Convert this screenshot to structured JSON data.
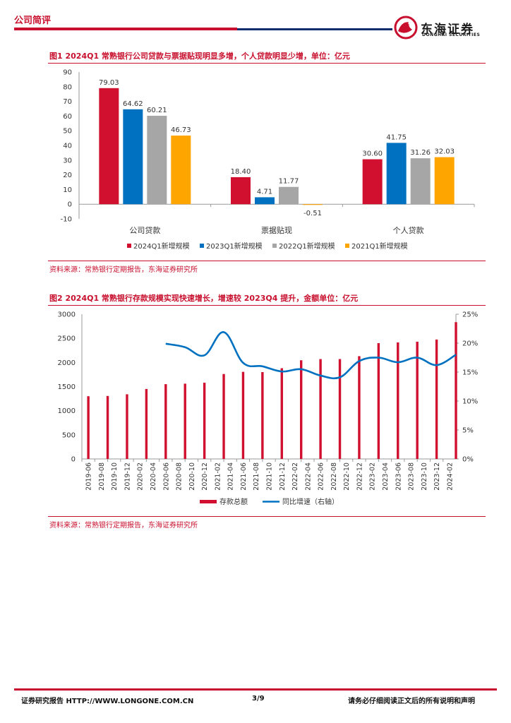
{
  "header": {
    "section": "公司简评",
    "logo_cn": "东海证券",
    "logo_en": "DONGHAI SECURITIES"
  },
  "figure1": {
    "title": "图1  2024Q1 常熟银行公司贷款与票据贴现明显多增，个人贷款明显少增，单位：亿元",
    "source": "资料来源：常熟银行定期报告，东海证券研究所"
  },
  "figure2": {
    "title": "图2  2024Q1 常熟银行存款规模实现快速增长，增速较 2023Q4 提升，金额单位：亿元",
    "source": "资料来源：常熟银行定期报告，东海证券研究所"
  },
  "footer": {
    "left": "证券研究报告    HTTP://WWW.LONGONE.COM.CN",
    "page": "3/9",
    "right": "请务必仔细阅读正文后的所有说明和声明"
  },
  "colors": {
    "accent": "#c8102e",
    "navy": "#0b2d6b",
    "blue": "#0070c0",
    "gray": "#a6a6a6",
    "orange": "#ffa500"
  },
  "chart_data": [
    {
      "type": "bar",
      "categories": [
        "公司贷款",
        "票据贴现",
        "个人贷款"
      ],
      "series": [
        {
          "name": "2024Q1新增规模",
          "values": [
            79.03,
            18.4,
            30.6
          ],
          "color": "#d0102e"
        },
        {
          "name": "2023Q1新增规模",
          "values": [
            64.62,
            4.71,
            41.75
          ],
          "color": "#0070c0"
        },
        {
          "name": "2022Q1新增规模",
          "values": [
            60.21,
            11.77,
            31.26
          ],
          "color": "#a6a6a6"
        },
        {
          "name": "2021Q1新增规模",
          "values": [
            46.73,
            -0.51,
            32.03
          ],
          "color": "#ffa500"
        }
      ],
      "data_labels": [
        [
          "79.03",
          "18.40",
          "30.60"
        ],
        [
          "64.62",
          "4.71",
          "41.75"
        ],
        [
          "60.21",
          "11.77",
          "31.26"
        ],
        [
          "46.73",
          "-0.51",
          "32.03"
        ]
      ],
      "ylim": [
        -10,
        90
      ],
      "yticks": [
        "-10",
        "0",
        "10",
        "20",
        "30",
        "40",
        "50",
        "60",
        "70",
        "80",
        "90"
      ],
      "legend": "bottom"
    },
    {
      "type": "bar+line",
      "x": [
        "2019-06",
        "2019-08",
        "2019-10",
        "2019-12",
        "2020-02",
        "2020-04",
        "2020-06",
        "2020-08",
        "2020-10",
        "2020-12",
        "2021-02",
        "2021-04",
        "2021-06",
        "2021-08",
        "2021-10",
        "2021-12",
        "2022-02",
        "2022-04",
        "2022-06",
        "2022-08",
        "2022-10",
        "2022-12",
        "2023-02",
        "2023-04",
        "2023-06",
        "2023-08",
        "2023-10",
        "2023-12",
        "2024-02"
      ],
      "bar_series": {
        "name": "存款总额",
        "axis": "left",
        "points": [
          {
            "x": "2019-06",
            "y": 1300
          },
          {
            "x": "2019-09",
            "y": 1305
          },
          {
            "x": "2019-12",
            "y": 1340
          },
          {
            "x": "2020-03",
            "y": 1450
          },
          {
            "x": "2020-06",
            "y": 1550
          },
          {
            "x": "2020-09",
            "y": 1560
          },
          {
            "x": "2020-12",
            "y": 1580
          },
          {
            "x": "2021-03",
            "y": 1760
          },
          {
            "x": "2021-06",
            "y": 1805
          },
          {
            "x": "2021-09",
            "y": 1800
          },
          {
            "x": "2021-12",
            "y": 1880
          },
          {
            "x": "2022-03",
            "y": 2045
          },
          {
            "x": "2022-06",
            "y": 2070
          },
          {
            "x": "2022-09",
            "y": 2070
          },
          {
            "x": "2022-12",
            "y": 2130
          },
          {
            "x": "2023-03",
            "y": 2400
          },
          {
            "x": "2023-06",
            "y": 2415
          },
          {
            "x": "2023-09",
            "y": 2430
          },
          {
            "x": "2023-12",
            "y": 2475
          },
          {
            "x": "2024-03",
            "y": 2835
          }
        ],
        "color": "#d0102e"
      },
      "line_series": {
        "name": "同比增速（右轴）",
        "axis": "right",
        "points": [
          {
            "x": "2020-06",
            "y": 19.9
          },
          {
            "x": "2020-09",
            "y": 19.3
          },
          {
            "x": "2020-12",
            "y": 17.9
          },
          {
            "x": "2021-03",
            "y": 21.9
          },
          {
            "x": "2021-06",
            "y": 16.6
          },
          {
            "x": "2021-09",
            "y": 16.0
          },
          {
            "x": "2021-12",
            "y": 15.1
          },
          {
            "x": "2022-03",
            "y": 15.5
          },
          {
            "x": "2022-06",
            "y": 14.4
          },
          {
            "x": "2022-09",
            "y": 14.1
          },
          {
            "x": "2022-12",
            "y": 16.9
          },
          {
            "x": "2023-03",
            "y": 17.5
          },
          {
            "x": "2023-06",
            "y": 16.7
          },
          {
            "x": "2023-09",
            "y": 17.5
          },
          {
            "x": "2023-12",
            "y": 16.2
          },
          {
            "x": "2024-03",
            "y": 18.0
          }
        ],
        "color": "#0070c0"
      },
      "ylim_left": [
        0,
        3000
      ],
      "yticks_left": [
        "0",
        "500",
        "1000",
        "1500",
        "2000",
        "2500",
        "3000"
      ],
      "ylim_right": [
        0,
        25
      ],
      "yticks_right": [
        "0%",
        "5%",
        "10%",
        "15%",
        "20%",
        "25%"
      ],
      "legend": "bottom"
    }
  ]
}
